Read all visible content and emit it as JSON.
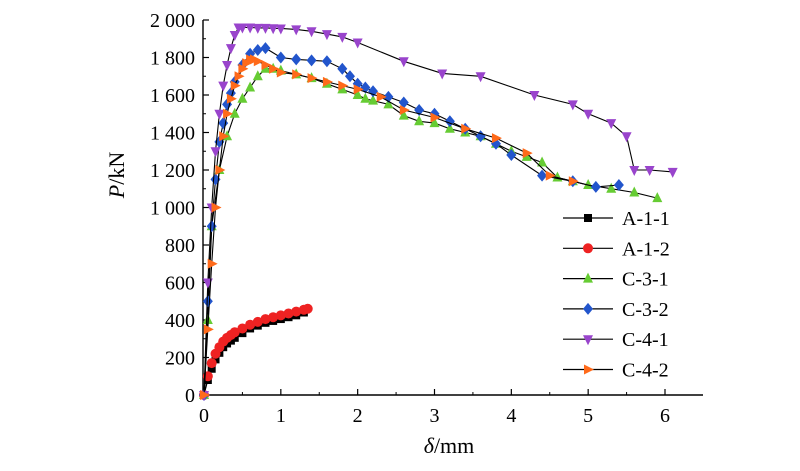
{
  "chart_data": {
    "type": "line",
    "xlabel_var": "δ",
    "xlabel_unit": "/mm",
    "ylabel_var": "P",
    "ylabel_unit": "/kN",
    "xlim": [
      0,
      6.5
    ],
    "ylim": [
      0,
      2000
    ],
    "x_ticks": [
      0,
      1,
      2,
      3,
      4,
      5,
      6
    ],
    "x_tick_labels": [
      "0",
      "1",
      "2",
      "3",
      "4",
      "5",
      "6"
    ],
    "y_ticks": [
      0,
      200,
      400,
      600,
      800,
      1000,
      1200,
      1400,
      1600,
      1800,
      2000
    ],
    "y_tick_labels": [
      "0",
      "200",
      "400",
      "600",
      "800",
      "1 000",
      "1 200",
      "1 400",
      "1 600",
      "1 800",
      "2 000"
    ],
    "grid": false,
    "legend_position": "right-center",
    "series": [
      {
        "name": "A-1-1",
        "color": "#000000",
        "marker": "square",
        "x": [
          0,
          0.05,
          0.1,
          0.15,
          0.2,
          0.25,
          0.3,
          0.35,
          0.4,
          0.5,
          0.6,
          0.7,
          0.8,
          0.9,
          1.0,
          1.1,
          1.2,
          1.3
        ],
        "y": [
          0,
          80,
          140,
          190,
          225,
          255,
          275,
          290,
          305,
          330,
          355,
          370,
          385,
          395,
          405,
          415,
          425,
          440
        ]
      },
      {
        "name": "A-1-2",
        "color": "#ee2222",
        "marker": "circle",
        "x": [
          0,
          0.05,
          0.1,
          0.15,
          0.2,
          0.25,
          0.3,
          0.35,
          0.4,
          0.5,
          0.6,
          0.7,
          0.8,
          0.9,
          1.0,
          1.1,
          1.2,
          1.3,
          1.35
        ],
        "y": [
          0,
          100,
          170,
          220,
          255,
          285,
          305,
          320,
          335,
          355,
          375,
          390,
          405,
          415,
          425,
          435,
          445,
          455,
          460
        ]
      },
      {
        "name": "C-3-1",
        "color": "#66cc33",
        "marker": "triangle-up",
        "x": [
          0,
          0.05,
          0.1,
          0.2,
          0.3,
          0.4,
          0.5,
          0.6,
          0.7,
          0.8,
          0.9,
          1.0,
          1.2,
          1.4,
          1.6,
          1.8,
          2.0,
          2.1,
          2.2,
          2.4,
          2.6,
          2.8,
          3.0,
          3.2,
          3.4,
          3.6,
          3.8,
          4.0,
          4.2,
          4.4,
          4.6,
          4.8,
          5.0,
          5.3,
          5.6,
          5.9
        ],
        "y": [
          0,
          400,
          900,
          1200,
          1380,
          1500,
          1580,
          1640,
          1700,
          1740,
          1740,
          1730,
          1710,
          1690,
          1660,
          1630,
          1600,
          1580,
          1570,
          1550,
          1490,
          1460,
          1450,
          1420,
          1400,
          1380,
          1340,
          1300,
          1270,
          1240,
          1160,
          1140,
          1120,
          1100,
          1080,
          1050
        ]
      },
      {
        "name": "C-3-2",
        "color": "#2255cc",
        "marker": "diamond",
        "x": [
          0,
          0.05,
          0.1,
          0.15,
          0.2,
          0.25,
          0.3,
          0.35,
          0.4,
          0.5,
          0.6,
          0.7,
          0.8,
          1.0,
          1.2,
          1.4,
          1.6,
          1.8,
          1.9,
          2.0,
          2.1,
          2.2,
          2.4,
          2.6,
          2.8,
          3.0,
          3.2,
          3.4,
          3.6,
          3.8,
          4.0,
          4.4,
          4.8,
          5.1,
          5.4
        ],
        "y": [
          0,
          500,
          900,
          1150,
          1350,
          1450,
          1550,
          1610,
          1670,
          1760,
          1820,
          1840,
          1850,
          1800,
          1790,
          1785,
          1780,
          1740,
          1700,
          1660,
          1640,
          1620,
          1590,
          1560,
          1520,
          1500,
          1460,
          1420,
          1380,
          1340,
          1280,
          1170,
          1140,
          1110,
          1120
        ]
      },
      {
        "name": "C-4-1",
        "color": "#9944cc",
        "marker": "triangle-down",
        "x": [
          0,
          0.05,
          0.1,
          0.15,
          0.2,
          0.25,
          0.3,
          0.35,
          0.4,
          0.45,
          0.5,
          0.6,
          0.7,
          0.8,
          0.9,
          1.0,
          1.2,
          1.4,
          1.6,
          1.8,
          2.0,
          2.6,
          3.1,
          3.6,
          4.3,
          4.8,
          5.0,
          5.3,
          5.5,
          5.6,
          5.8,
          6.1
        ],
        "y": [
          0,
          600,
          1000,
          1300,
          1500,
          1650,
          1760,
          1850,
          1920,
          1960,
          1960,
          1960,
          1958,
          1958,
          1956,
          1955,
          1950,
          1940,
          1925,
          1910,
          1880,
          1780,
          1715,
          1700,
          1600,
          1550,
          1500,
          1450,
          1380,
          1200,
          1200,
          1190
        ]
      },
      {
        "name": "C-4-2",
        "color": "#ff6a1a",
        "marker": "triangle-right",
        "x": [
          0,
          0.05,
          0.1,
          0.15,
          0.2,
          0.25,
          0.3,
          0.35,
          0.4,
          0.45,
          0.5,
          0.55,
          0.6,
          0.65,
          0.7,
          0.8,
          0.9,
          1.0,
          1.2,
          1.4,
          1.6,
          1.8,
          2.0,
          2.3,
          2.6,
          3.0,
          3.4,
          3.8,
          4.2,
          4.5,
          4.8
        ],
        "y": [
          0,
          350,
          700,
          1000,
          1200,
          1380,
          1500,
          1580,
          1650,
          1700,
          1740,
          1770,
          1790,
          1790,
          1780,
          1760,
          1740,
          1720,
          1710,
          1690,
          1670,
          1650,
          1630,
          1590,
          1520,
          1480,
          1420,
          1370,
          1290,
          1170,
          1140
        ]
      }
    ]
  }
}
